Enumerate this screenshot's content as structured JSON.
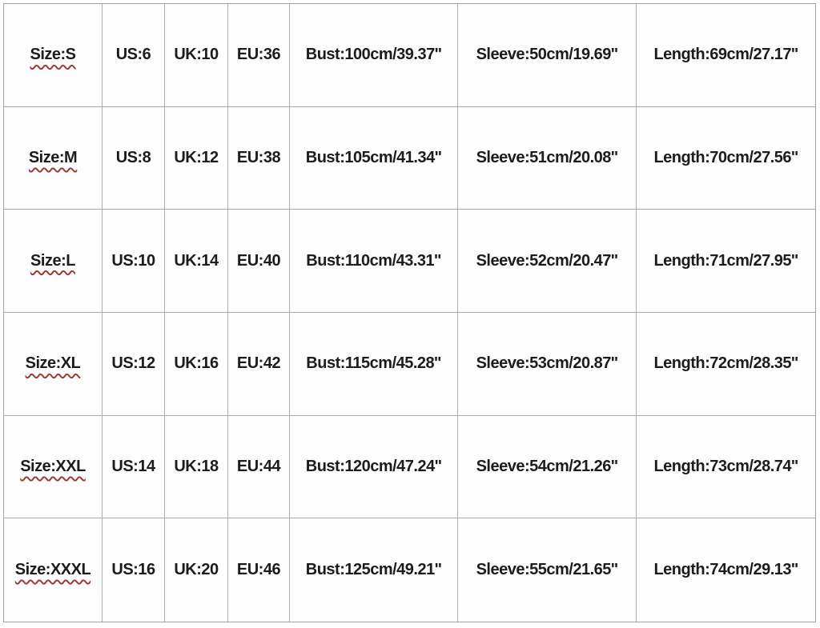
{
  "table": {
    "description": "Garment size conversion chart",
    "border_color": "#a9a9a9",
    "text_color": "#1c1c1c",
    "squiggle_underline_color": "#9e3a3a",
    "columns": [
      "size",
      "us",
      "uk",
      "eu",
      "bust",
      "sleeve",
      "length"
    ],
    "rows": [
      {
        "cells": [
          "Size:S",
          "US:6",
          "UK:10",
          "EU:36",
          "Bust:100cm/39.37''",
          "Sleeve:50cm/19.69''",
          "Length:69cm/27.17''"
        ]
      },
      {
        "cells": [
          "Size:M",
          "US:8",
          "UK:12",
          "EU:38",
          "Bust:105cm/41.34''",
          "Sleeve:51cm/20.08''",
          "Length:70cm/27.56''"
        ]
      },
      {
        "cells": [
          "Size:L",
          "US:10",
          "UK:14",
          "EU:40",
          "Bust:110cm/43.31''",
          "Sleeve:52cm/20.47''",
          "Length:71cm/27.95''"
        ]
      },
      {
        "cells": [
          "Size:XL",
          "US:12",
          "UK:16",
          "EU:42",
          "Bust:115cm/45.28''",
          "Sleeve:53cm/20.87''",
          "Length:72cm/28.35''"
        ]
      },
      {
        "cells": [
          "Size:XXL",
          "US:14",
          "UK:18",
          "EU:44",
          "Bust:120cm/47.24''",
          "Sleeve:54cm/21.26''",
          "Length:73cm/28.74''"
        ]
      },
      {
        "cells": [
          "Size:XXXL",
          "US:16",
          "UK:20",
          "EU:46",
          "Bust:125cm/49.21''",
          "Sleeve:55cm/21.65''",
          "Length:74cm/29.13''"
        ]
      }
    ]
  }
}
